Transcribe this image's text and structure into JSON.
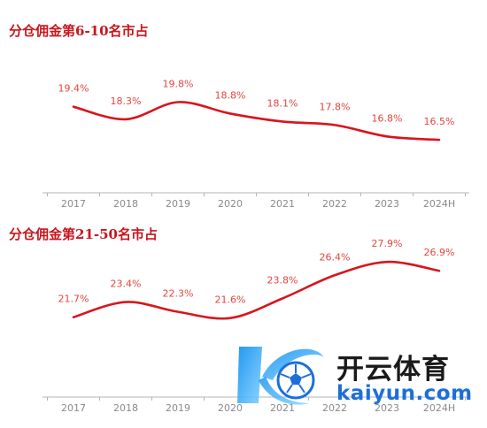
{
  "chart_data": [
    {
      "type": "line",
      "title": "分仓佣金第6-10名市占",
      "categories": [
        "2017",
        "2018",
        "2019",
        "2020",
        "2021",
        "2022",
        "2023",
        "2024H"
      ],
      "values": [
        19.4,
        18.3,
        19.8,
        18.8,
        18.1,
        17.8,
        16.8,
        16.5
      ],
      "data_labels": [
        "19.4%",
        "18.3%",
        "19.8%",
        "18.8%",
        "18.1%",
        "17.8%",
        "16.8%",
        "16.5%"
      ],
      "unit": "%",
      "ylim": [
        14.5,
        21.0
      ],
      "line_color": "#d8151c",
      "label_color": "#e0463f",
      "grid": false,
      "legend": "none"
    },
    {
      "type": "line",
      "title": "分仓佣金第21-50名市占",
      "categories": [
        "2017",
        "2018",
        "2019",
        "2020",
        "2021",
        "2022",
        "2023",
        "2024H"
      ],
      "values": [
        21.7,
        23.4,
        22.3,
        21.6,
        23.8,
        26.4,
        27.9,
        26.9
      ],
      "data_labels": [
        "21.7%",
        "23.4%",
        "22.3%",
        "21.6%",
        "23.8%",
        "26.4%",
        "27.9%",
        "26.9%"
      ],
      "unit": "%",
      "ylim": [
        18.0,
        29.5
      ],
      "line_color": "#d8151c",
      "label_color": "#e0463f",
      "grid": false,
      "legend": "none"
    }
  ],
  "watermark": {
    "name": "开云体育",
    "domain": "kaiyun.com",
    "logo_icon": "k-soccer-ball-logo",
    "color_primary": "#1d6fd8"
  }
}
